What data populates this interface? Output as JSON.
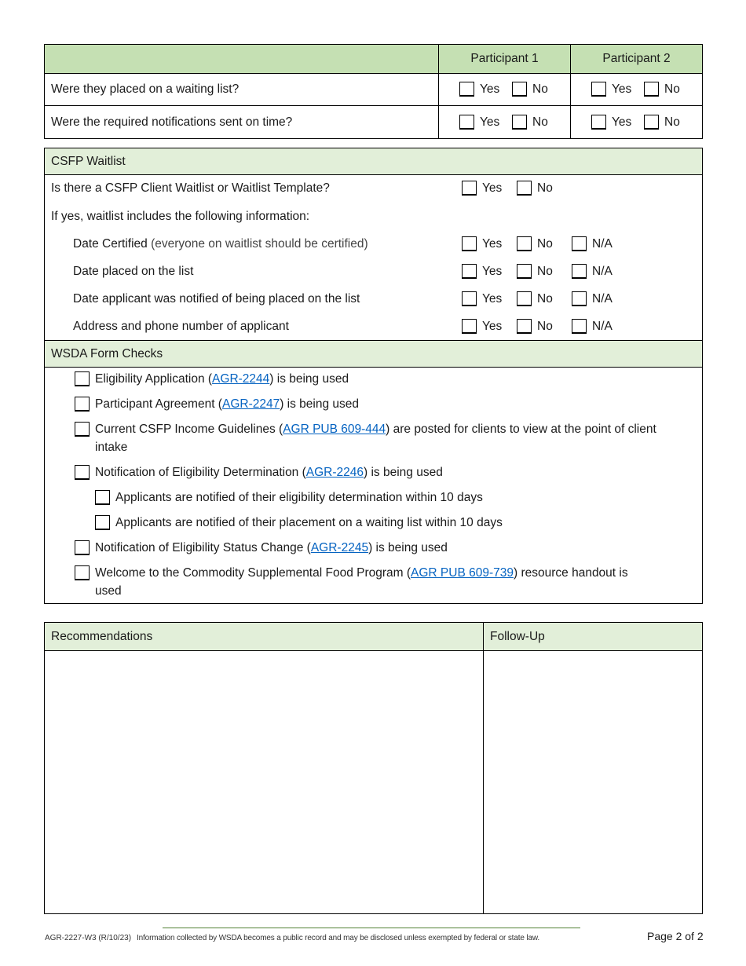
{
  "participant_table": {
    "headers": [
      "Participant 1",
      "Participant 2"
    ],
    "rows": [
      {
        "question": "Were they placed on a waiting list?"
      },
      {
        "question": "Were the required notifications sent on time?"
      }
    ],
    "yes_label": "Yes",
    "no_label": "No"
  },
  "csfp_waitlist": {
    "title": "CSFP Waitlist",
    "question": "Is there a CSFP Client Waitlist or Waitlist Template?",
    "intro": "If yes, waitlist includes the following information:",
    "items": [
      {
        "label": "Date Certified",
        "note": "(everyone on waitlist should be certified)"
      },
      {
        "label": "Date placed on the list"
      },
      {
        "label": "Date applicant was notified of being placed on the list"
      },
      {
        "label": "Address and phone number of applicant"
      }
    ],
    "yes_label": "Yes",
    "no_label": "No",
    "na_label": "N/A"
  },
  "wsda_form_checks": {
    "title": "WSDA Form Checks",
    "items": [
      {
        "before": "Eligibility Application (",
        "link": "AGR-2244",
        "after": ") is being used"
      },
      {
        "before": "Participant Agreement (",
        "link": "AGR-2247",
        "after": ") is being used"
      },
      {
        "before": "Current CSFP Income Guidelines (",
        "link": "AGR PUB 609-444",
        "after": ") are posted for clients to view at the point of client intake"
      },
      {
        "before": "Notification of Eligibility Determination (",
        "link": "AGR-2246",
        "after": ") is being used"
      },
      {
        "text": "Applicants are notified of their eligibility determination within 10 days"
      },
      {
        "text": "Applicants are notified of their placement on a waiting list within 10 days"
      },
      {
        "before": "Notification of Eligibility Status Change (",
        "link": "AGR-2245",
        "after": ") is being used"
      },
      {
        "before": "Welcome to the Commodity Supplemental Food Program (",
        "link": "AGR PUB 609-739",
        "after": ") resource handout is used"
      }
    ]
  },
  "recommendations": {
    "recommendations_header": "Recommendations",
    "followup_header": "Follow-Up"
  },
  "footer": {
    "form_id": "AGR-2227-W3 (R/10/23)",
    "disclaimer": "Information collected by WSDA becomes a public record and may be disclosed unless exempted by federal or state law.",
    "page": "Page 2 of 2"
  },
  "colors": {
    "header_green": "#c5e0b3",
    "section_green": "#e2efd9",
    "link": "#0563c1"
  }
}
